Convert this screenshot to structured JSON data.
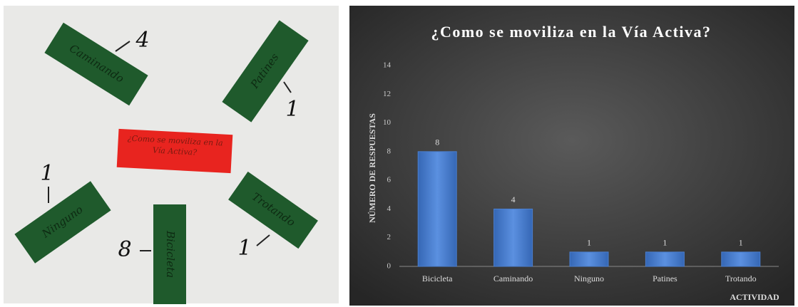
{
  "chart_data": {
    "type": "bar",
    "title": "¿Como se moviliza en la Vía Activa?",
    "categories": [
      "Bicicleta",
      "Caminando",
      "Ninguno",
      "Patines",
      "Trotando"
    ],
    "values": [
      8,
      4,
      1,
      1,
      1
    ],
    "color": "#4a7fd0",
    "ylim": [
      0,
      14
    ],
    "yticks": [
      0,
      2,
      4,
      6,
      8,
      10,
      12,
      14
    ],
    "x_label": "ACTIVIDAD",
    "y_label": "NÚMERO DE RESPUESTAS",
    "grid": false
  },
  "photo": {
    "center_note": "¿Como se moviliza en la Vía Activa?",
    "notes": [
      {
        "label": "Caminando",
        "count": 4
      },
      {
        "label": "Patines",
        "count": 1
      },
      {
        "label": "Ninguno",
        "count": 1
      },
      {
        "label": "Bicicleta",
        "count": 8
      },
      {
        "label": "Trotando",
        "count": 1
      }
    ]
  }
}
